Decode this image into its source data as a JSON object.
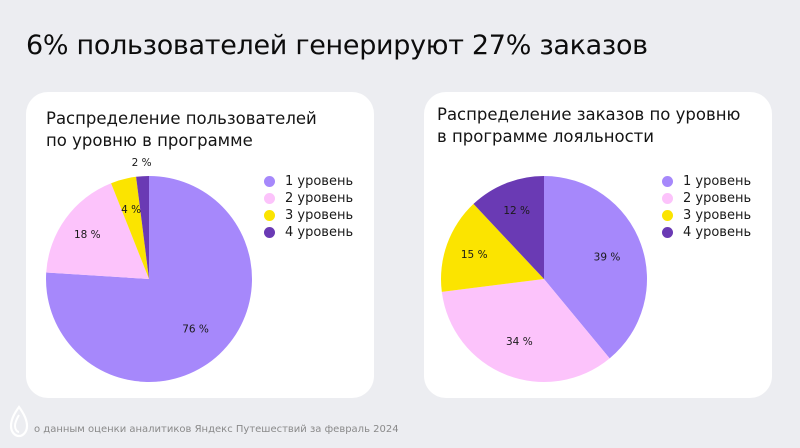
{
  "slide_title": "6% пользователей генерируют 27% заказов",
  "footer_text": "о данным оценки аналитиков Яндекс Путешествий за февраль 2024",
  "chart_data": [
    {
      "type": "pie",
      "title": "Распределение пользователей по уровню в программе",
      "title_lines": [
        "Распределение пользователей",
        "по уровню в программе"
      ],
      "categories": [
        "1 уровень",
        "2 уровень",
        "3 уровень",
        "4 уровень"
      ],
      "values": [
        76,
        18,
        4,
        2
      ],
      "labels": [
        "76 %",
        "18 %",
        "4 %",
        "2 %"
      ],
      "colors": [
        "#a688fb",
        "#fcc3fb",
        "#fbe400",
        "#6a3ab4"
      ],
      "legend_position": "right"
    },
    {
      "type": "pie",
      "title": "Распределение заказов по уровню в программе лояльности",
      "title_lines": [
        "Распределение заказов по уровню",
        "в программе лояльности"
      ],
      "categories": [
        "1 уровень",
        "2 уровень",
        "3 уровень",
        "4 уровень"
      ],
      "values": [
        39,
        34,
        15,
        12
      ],
      "labels": [
        "39 %",
        "34 %",
        "15 %",
        "12 %"
      ],
      "colors": [
        "#a688fb",
        "#fcc3fb",
        "#fbe400",
        "#6a3ab4"
      ],
      "legend_position": "right"
    }
  ]
}
